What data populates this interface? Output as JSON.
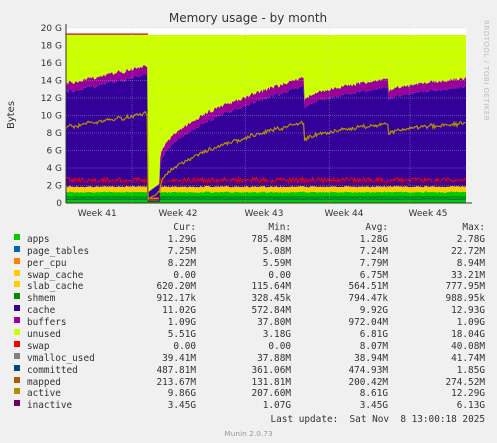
{
  "chart_data": {
    "type": "area",
    "title": "Memory usage - by month",
    "ylabel": "Bytes",
    "xlabel": "",
    "y_ticks": [
      "0",
      "2 G",
      "4 G",
      "6 G",
      "8 G",
      "10 G",
      "12 G",
      "14 G",
      "16 G",
      "18 G",
      "20 G"
    ],
    "ylim": [
      0,
      20
    ],
    "y_unit": "GiB",
    "x_ticks": [
      "Week 41",
      "Week 42",
      "Week 43",
      "Week 44",
      "Week 45"
    ],
    "grid": true,
    "columns": {
      "cur": "Cur:",
      "min": "Min:",
      "avg": "Avg:",
      "max": "Max:"
    },
    "legend": [
      {
        "name": "apps",
        "color": "#00cc00",
        "cur": "1.29G",
        "min": "785.48M",
        "avg": "1.28G",
        "max": "2.78G"
      },
      {
        "name": "page_tables",
        "color": "#0066b3",
        "cur": "7.25M",
        "min": "5.08M",
        "avg": "7.24M",
        "max": "22.72M"
      },
      {
        "name": "per_cpu",
        "color": "#ff8000",
        "cur": "8.22M",
        "min": "5.59M",
        "avg": "7.79M",
        "max": "8.94M"
      },
      {
        "name": "swap_cache",
        "color": "#ffcc00",
        "cur": "0.00",
        "min": "0.00",
        "avg": "6.75M",
        "max": "33.21M"
      },
      {
        "name": "slab_cache",
        "color": "#ffcc00",
        "cur": "620.20M",
        "min": "115.64M",
        "avg": "564.51M",
        "max": "777.95M"
      },
      {
        "name": "shmem",
        "color": "#008f00",
        "cur": "912.17k",
        "min": "328.45k",
        "avg": "794.47k",
        "max": "988.95k"
      },
      {
        "name": "cache",
        "color": "#330099",
        "cur": "11.02G",
        "min": "572.84M",
        "avg": "9.92G",
        "max": "12.93G"
      },
      {
        "name": "buffers",
        "color": "#990099",
        "cur": "1.09G",
        "min": "37.80M",
        "avg": "972.04M",
        "max": "1.09G"
      },
      {
        "name": "unused",
        "color": "#ccff00",
        "cur": "5.51G",
        "min": "3.18G",
        "avg": "6.81G",
        "max": "18.04G"
      },
      {
        "name": "swap",
        "color": "#ff0000",
        "cur": "0.00",
        "min": "0.00",
        "avg": "8.07M",
        "max": "40.08M"
      },
      {
        "name": "vmalloc_used",
        "color": "#808080",
        "cur": "39.41M",
        "min": "37.88M",
        "avg": "38.94M",
        "max": "41.74M"
      },
      {
        "name": "committed",
        "color": "#00487d",
        "cur": "487.81M",
        "min": "361.06M",
        "avg": "474.93M",
        "max": "1.85G"
      },
      {
        "name": "mapped",
        "color": "#b35a00",
        "cur": "213.67M",
        "min": "131.81M",
        "avg": "200.42M",
        "max": "274.52M"
      },
      {
        "name": "active",
        "color": "#b38f00",
        "cur": "9.86G",
        "min": "207.60M",
        "avg": "8.61G",
        "max": "12.29G"
      },
      {
        "name": "inactive",
        "color": "#6b006b",
        "cur": "3.45G",
        "min": "1.07G",
        "avg": "3.45G",
        "max": "6.13G"
      }
    ]
  },
  "last_update": "Last update:  Sat Nov  8 13:00:18 2025",
  "footer": "Munin 2.0.73",
  "watermark": "RRDTOOL / TOBI OETIKER"
}
